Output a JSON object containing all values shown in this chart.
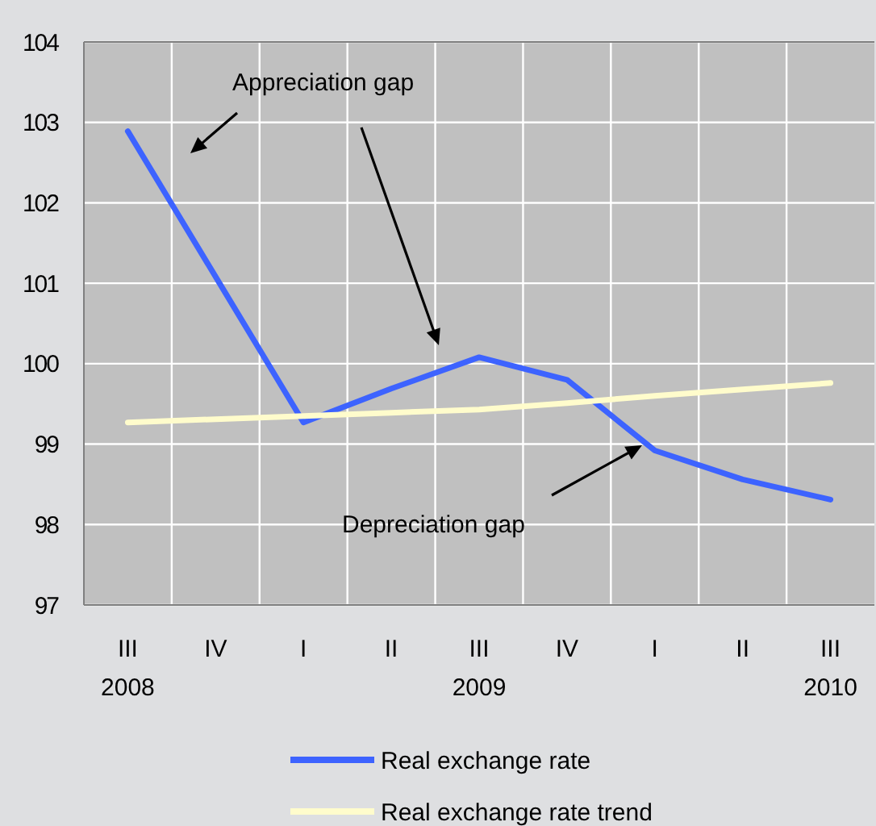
{
  "chart_data": {
    "type": "line",
    "categories": [
      "III\n2008",
      "IV",
      "I",
      "II",
      "III\n2009",
      "IV",
      "I",
      "II",
      "III\n2010"
    ],
    "ylim": [
      97,
      104
    ],
    "yticks": [
      97,
      98,
      99,
      100,
      101,
      102,
      103,
      104
    ],
    "grid": true,
    "legend": "bottom",
    "annotations": [
      "Appreciation gap",
      "Depreciation gap"
    ],
    "series": [
      {
        "name": "Real exchange rate",
        "color": "#3d63ff",
        "values": [
          102.89,
          101.08,
          99.27,
          99.69,
          100.08,
          99.8,
          98.92,
          98.56,
          98.31
        ]
      },
      {
        "name": "Real exchange rate trend",
        "color": "#fffccc",
        "values": [
          99.27,
          99.31,
          99.35,
          99.39,
          99.43,
          99.51,
          99.6,
          99.68,
          99.76
        ]
      }
    ]
  }
}
